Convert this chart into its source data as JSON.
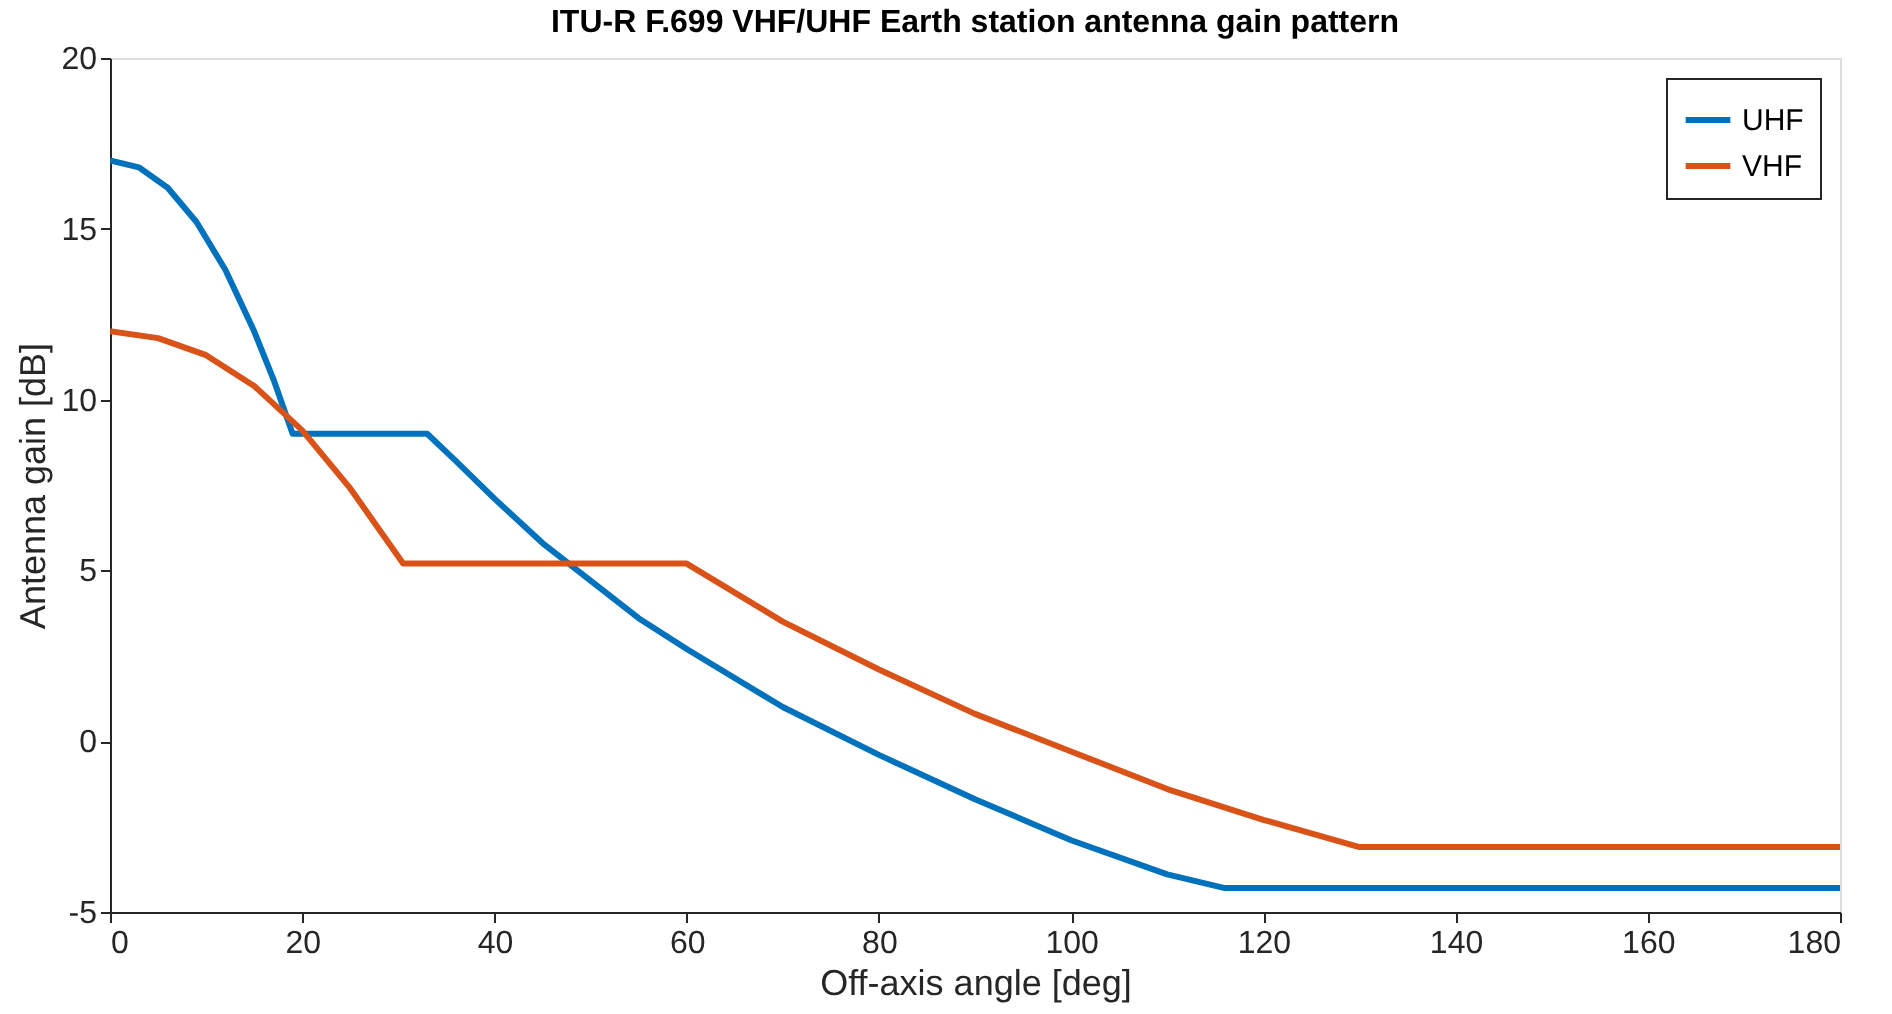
{
  "chart_data": {
    "type": "line",
    "title": "ITU-R F.699 VHF/UHF Earth station antenna gain pattern",
    "xlabel": "Off-axis angle [deg]",
    "ylabel": "Antenna gain [dB]",
    "xlim": [
      0,
      180
    ],
    "xticks": [
      0,
      20,
      40,
      60,
      80,
      100,
      120,
      140,
      160,
      180
    ],
    "ylim": [
      -5,
      20
    ],
    "yticks": [
      {
        "value": -5,
        "label": "-5"
      },
      0,
      5,
      10,
      15,
      20
    ],
    "grid": false,
    "legend": "top right",
    "line_style": "solid",
    "marker": "none",
    "series": [
      {
        "name": "UHF",
        "color": "#0072bd",
        "x": [
          0,
          3,
          6,
          9,
          12,
          15,
          17,
          19,
          33,
          36,
          40,
          45,
          50,
          55,
          60,
          70,
          80,
          90,
          100,
          110,
          116,
          180
        ],
        "values": [
          17,
          16.8,
          16.2,
          15.2,
          13.8,
          12.0,
          10.6,
          9.0,
          9.0,
          8.2,
          7.1,
          5.8,
          4.7,
          3.6,
          2.7,
          1.0,
          -0.4,
          -1.7,
          -2.9,
          -3.9,
          -4.3,
          -4.3
        ]
      },
      {
        "name": "VHF",
        "color": "#d95319",
        "x": [
          0,
          5,
          10,
          15,
          20,
          25,
          30.5,
          60,
          70,
          80,
          90,
          100,
          110,
          120,
          130,
          180
        ],
        "values": [
          12,
          11.8,
          11.3,
          10.4,
          9.1,
          7.4,
          5.2,
          5.2,
          3.5,
          2.1,
          0.8,
          -0.3,
          -1.4,
          -2.3,
          -3.1,
          -3.1
        ]
      }
    ]
  }
}
